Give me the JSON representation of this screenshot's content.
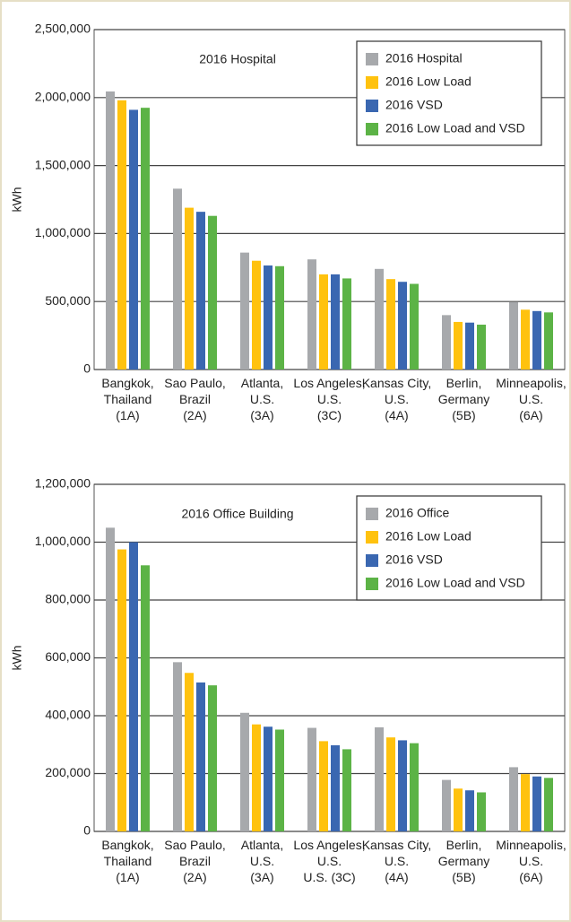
{
  "chart_data": [
    {
      "type": "bar",
      "title": "2016 Hospital",
      "ylabel": "kWh",
      "categories": [
        "Bangkok,\nThailand\n(1A)",
        "Sao Paulo,\nBrazil\n(2A)",
        "Atlanta,\nU.S.\n(3A)",
        "Los Angeles,\nU.S.\n(3C)",
        "Kansas City,\nU.S.\n(4A)",
        "Berlin,\nGermany\n(5B)",
        "Minneapolis,\nU.S.\n(6A)"
      ],
      "series": [
        {
          "name": "2016 Hospital",
          "color": "#a7a9ac",
          "values": [
            2045000,
            1330000,
            860000,
            810000,
            740000,
            400000,
            495000
          ]
        },
        {
          "name": "2016 Low Load",
          "color": "#ffc20e",
          "values": [
            1980000,
            1190000,
            800000,
            700000,
            665000,
            350000,
            440000
          ]
        },
        {
          "name": "2016 VSD",
          "color": "#3a67b1",
          "values": [
            1910000,
            1160000,
            765000,
            700000,
            645000,
            345000,
            430000
          ]
        },
        {
          "name": "2016 Low Load and VSD",
          "color": "#5cb346",
          "values": [
            1925000,
            1130000,
            760000,
            670000,
            630000,
            330000,
            420000
          ]
        }
      ],
      "ylim": [
        0,
        2500000
      ],
      "yticks": [
        0,
        {
          "value": 500000,
          "label": "500,000"
        },
        {
          "value": 1000000,
          "label": "1,000,000"
        },
        {
          "value": 1500000,
          "label": "1,500,000"
        },
        {
          "value": 2000000,
          "label": "2,000,000"
        },
        {
          "value": 2500000,
          "label": "2,500,000"
        }
      ],
      "grid": true,
      "legend": "upper right"
    },
    {
      "type": "bar",
      "title": "2016 Office Building",
      "ylabel": "kWh",
      "categories": [
        "Bangkok,\nThailand\n(1A)",
        "Sao Paulo,\nBrazil\n(2A)",
        "Atlanta,\nU.S.\n(3A)",
        "Los Angeles,\nU.S.\nU.S. (3C)",
        "Kansas City,\nU.S.\n(4A)",
        "Berlin,\nGermany\n(5B)",
        "Minneapolis,\nU.S.\n(6A)"
      ],
      "series": [
        {
          "name": "2016 Office",
          "color": "#a7a9ac",
          "values": [
            1050000,
            585000,
            410000,
            358000,
            360000,
            178000,
            222000
          ]
        },
        {
          "name": "2016 Low Load",
          "color": "#ffc20e",
          "values": [
            975000,
            548000,
            370000,
            312000,
            325000,
            148000,
            198000
          ]
        },
        {
          "name": "2016 VSD",
          "color": "#3a67b1",
          "values": [
            1000000,
            515000,
            362000,
            298000,
            315000,
            142000,
            190000
          ]
        },
        {
          "name": "2016 Low Load and VSD",
          "color": "#5cb346",
          "values": [
            920000,
            505000,
            352000,
            284000,
            305000,
            135000,
            185000
          ]
        }
      ],
      "ylim": [
        0,
        1200000
      ],
      "yticks": [
        0,
        {
          "value": 200000,
          "label": "200,000"
        },
        {
          "value": 400000,
          "label": "400,000"
        },
        {
          "value": 600000,
          "label": "600,000"
        },
        {
          "value": 800000,
          "label": "800,000"
        },
        {
          "value": 1000000,
          "label": "1,000,000"
        },
        {
          "value": 1200000,
          "label": "1,200,000"
        }
      ],
      "grid": true,
      "legend": "upper right"
    }
  ]
}
